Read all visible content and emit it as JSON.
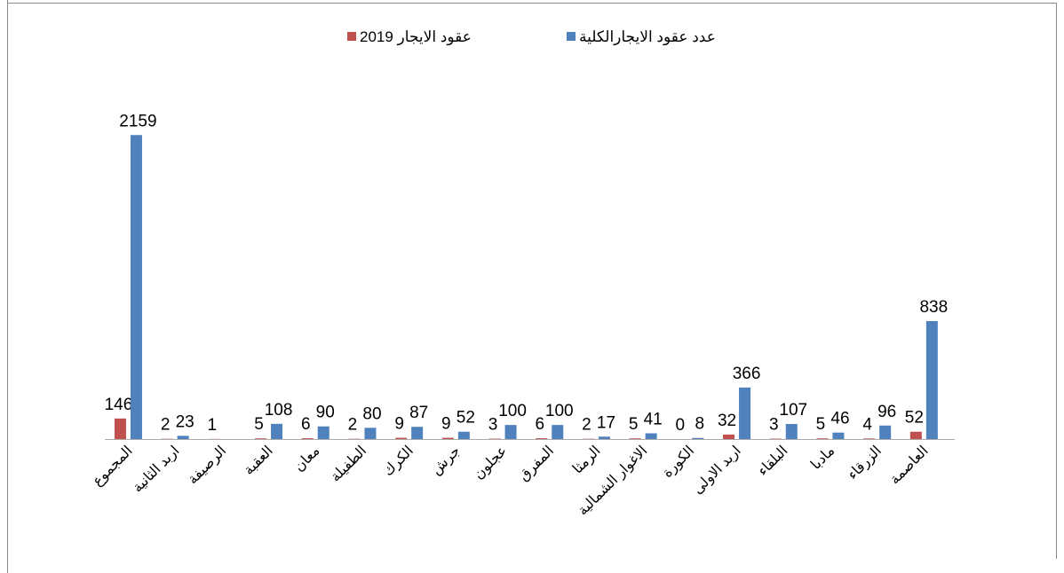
{
  "chart_data": {
    "type": "bar",
    "categories": [
      "المجموع",
      "اربد الثانية",
      "الرصيفة",
      "العقبة",
      "معان",
      "الطفيلة",
      "الكرك",
      "جرش",
      "عجلون",
      "المفرق",
      "الرمثا",
      "الاغوار الشمالية",
      "الكورة",
      "اربد الاولى",
      "البلقاء",
      "مادبا",
      "الزرقاء",
      "العاصمة"
    ],
    "series": [
      {
        "name": "عقود الايجار 2019",
        "color": "#c0504d",
        "values": [
          146,
          2,
          1,
          5,
          6,
          2,
          9,
          9,
          3,
          6,
          2,
          5,
          0,
          32,
          3,
          5,
          4,
          52
        ]
      },
      {
        "name": "عدد عقود الايجارالكلية",
        "color": "#4f81bd",
        "values": [
          2159,
          23,
          null,
          108,
          90,
          80,
          87,
          52,
          100,
          100,
          17,
          41,
          8,
          366,
          107,
          46,
          96,
          838
        ]
      }
    ],
    "ylim": [
      0,
      2400
    ]
  }
}
